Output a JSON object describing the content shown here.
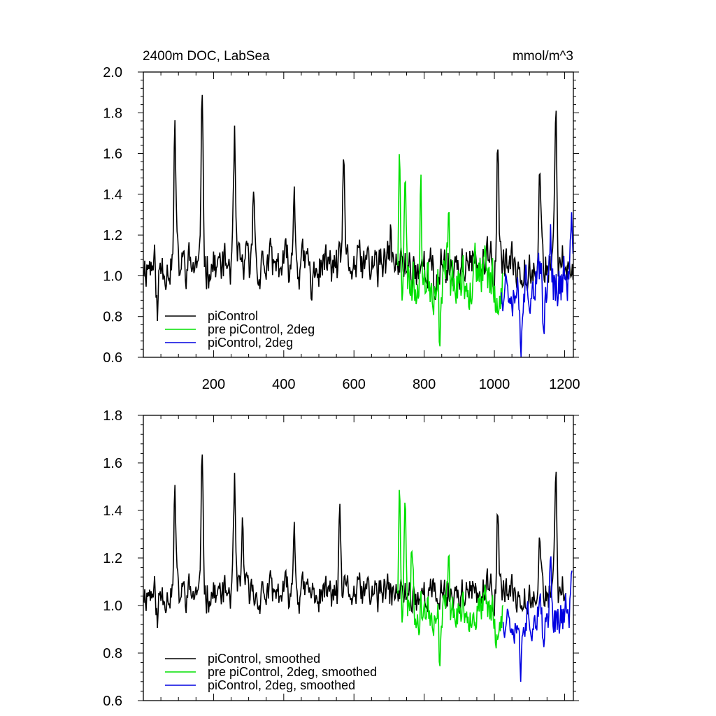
{
  "chart_data": [
    {
      "type": "line",
      "title_left": "2400m DOC, LabSea",
      "title_right": "mmol/m^3",
      "xlabel": "",
      "ylabel": "",
      "xlim": [
        0,
        1225
      ],
      "ylim": [
        0.6,
        2.0
      ],
      "xticks": [
        200,
        400,
        600,
        800,
        1000,
        1200
      ],
      "xtick_labels": [
        "200",
        "400",
        "600",
        "800",
        "1000",
        "1200"
      ],
      "yticks": [
        0.6,
        0.8,
        1.0,
        1.2,
        1.4,
        1.6,
        1.8,
        2.0
      ],
      "ytick_labels": [
        "0.6",
        "0.8",
        "1.0",
        "1.2",
        "1.4",
        "1.6",
        "1.8",
        "2.0"
      ],
      "grid": false,
      "legend_position": "bottom-left",
      "series": [
        {
          "name": "piControl",
          "color": "#000000",
          "x_start": 0,
          "x_end": 1224,
          "base": 1.05,
          "amp": 0.1,
          "seed": 11,
          "peaks": [
            [
              90,
              1.71
            ],
            [
              168,
              1.88
            ],
            [
              260,
              1.64
            ],
            [
              315,
              1.46
            ],
            [
              430,
              1.45
            ],
            [
              570,
              1.56
            ],
            [
              705,
              1.2
            ],
            [
              1010,
              1.68
            ],
            [
              1130,
              1.56
            ],
            [
              1175,
              1.76
            ],
            [
              40,
              0.82
            ],
            [
              480,
              0.88
            ],
            [
              830,
              0.82
            ]
          ]
        },
        {
          "name": "pre piControl, 2deg",
          "color": "#00e000",
          "x_start": 725,
          "x_end": 1025,
          "base": 0.98,
          "amp": 0.13,
          "seed": 23,
          "peaks": [
            [
              730,
              1.6
            ],
            [
              745,
              1.52
            ],
            [
              790,
              1.39
            ],
            [
              845,
              0.71
            ],
            [
              870,
              1.36
            ],
            [
              945,
              1.25
            ],
            [
              1005,
              0.84
            ]
          ]
        },
        {
          "name": "piControl, 2deg",
          "color": "#0000e0",
          "x_start": 1020,
          "x_end": 1224,
          "base": 0.97,
          "amp": 0.12,
          "seed": 37,
          "peaks": [
            [
              1075,
              0.67
            ],
            [
              1140,
              0.69
            ],
            [
              1160,
              1.25
            ],
            [
              1220,
              1.38
            ],
            [
              1222,
              0.85
            ]
          ]
        }
      ]
    },
    {
      "type": "line",
      "title_left": "",
      "title_right": "",
      "xlabel": "",
      "ylabel": "",
      "xlim": [
        0,
        1225
      ],
      "ylim": [
        0.6,
        1.8
      ],
      "xticks": [
        200,
        400,
        600,
        800,
        1000,
        1200
      ],
      "xtick_labels": [],
      "yticks": [
        0.6,
        0.8,
        1.0,
        1.2,
        1.4,
        1.6,
        1.8
      ],
      "ytick_labels": [
        "0.6",
        "0.8",
        "1.0",
        "1.2",
        "1.4",
        "1.6",
        "1.8"
      ],
      "grid": false,
      "legend_position": "bottom-left",
      "series": [
        {
          "name": "piControl, smoothed",
          "color": "#000000",
          "x_start": 0,
          "x_end": 1205,
          "base": 1.05,
          "amp": 0.07,
          "seed": 11,
          "peaks": [
            [
              90,
              1.47
            ],
            [
              168,
              1.63
            ],
            [
              260,
              1.49
            ],
            [
              283,
              1.35
            ],
            [
              430,
              1.36
            ],
            [
              560,
              1.35
            ],
            [
              1010,
              1.42
            ],
            [
              1130,
              1.31
            ],
            [
              1175,
              1.53
            ],
            [
              40,
              0.94
            ]
          ]
        },
        {
          "name": "pre piControl, 2deg, smoothed",
          "color": "#00e000",
          "x_start": 725,
          "x_end": 1025,
          "base": 0.98,
          "amp": 0.08,
          "seed": 23,
          "peaks": [
            [
              730,
              1.5
            ],
            [
              745,
              1.47
            ],
            [
              765,
              1.29
            ],
            [
              845,
              0.78
            ],
            [
              870,
              1.24
            ],
            [
              1005,
              0.84
            ]
          ]
        },
        {
          "name": "piControl, 2deg, smoothed",
          "color": "#0000e0",
          "x_start": 1025,
          "x_end": 1222,
          "base": 0.96,
          "amp": 0.08,
          "seed": 37,
          "peaks": [
            [
              1075,
              0.72
            ],
            [
              1140,
              0.75
            ],
            [
              1160,
              1.2
            ],
            [
              1220,
              1.12
            ]
          ]
        }
      ]
    }
  ]
}
